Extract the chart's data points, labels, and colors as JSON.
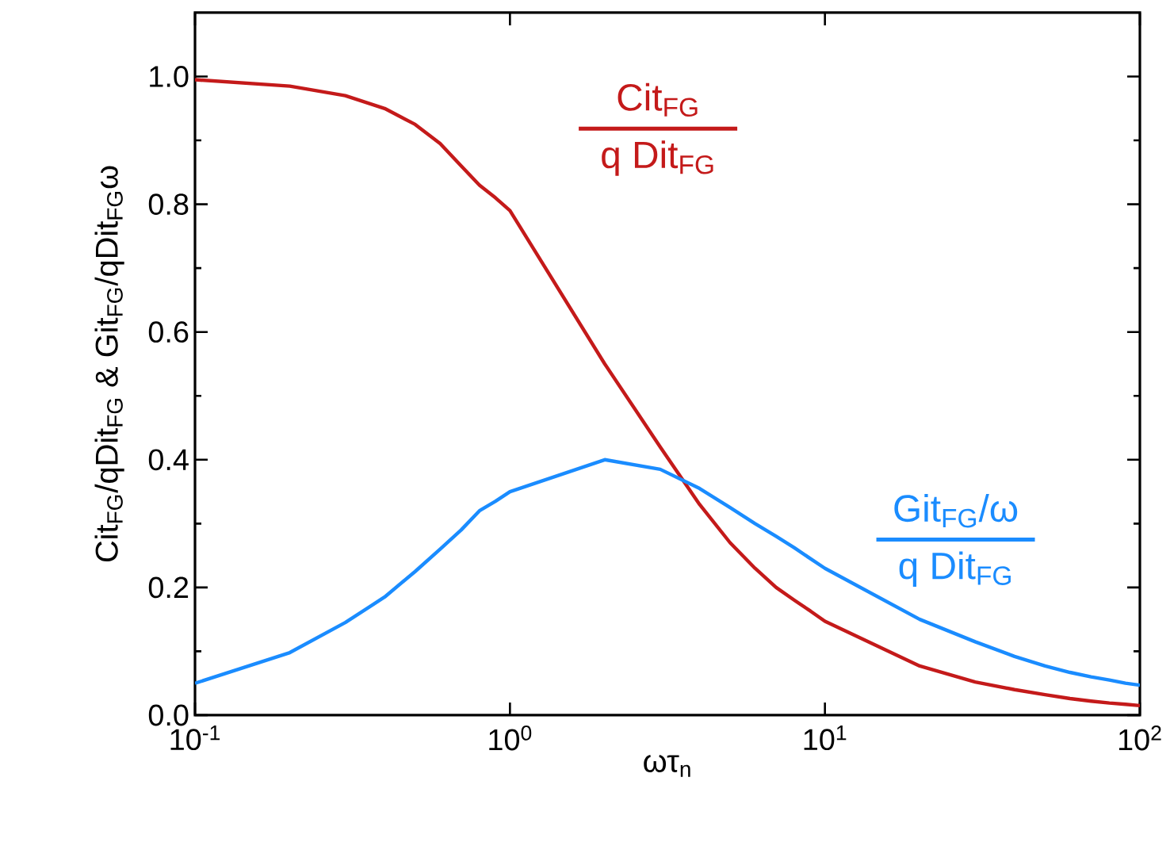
{
  "chart_data": {
    "type": "line",
    "xlabel": "ωτ$_{n}$",
    "ylabel": "Cit$_{FG}$/qDit$_{FG}$  &  Git$_{FG}$/qDit$_{FG}$ω",
    "log": "x",
    "xlim": [
      0.1,
      100
    ],
    "ylim": [
      0,
      1.1
    ],
    "xticks": [
      {
        "value": 0.1,
        "label": "10$^{-1}$"
      },
      {
        "value": 1,
        "label": "10$^{0}$"
      },
      {
        "value": 10,
        "label": "10$^{1}$"
      },
      {
        "value": 100,
        "label": "10$^{2}$"
      }
    ],
    "yticks": [
      {
        "value": 0,
        "label": "0.0"
      },
      {
        "value": 0.2,
        "label": "0.2"
      },
      {
        "value": 0.4,
        "label": "0.4"
      },
      {
        "value": 0.6,
        "label": "0.6"
      },
      {
        "value": 0.8,
        "label": "0.8"
      },
      {
        "value": 1.0,
        "label": "1.0"
      }
    ],
    "x": [
      0.1,
      0.2,
      0.3,
      0.4,
      0.5,
      0.6,
      0.7,
      0.8,
      0.9,
      1,
      2,
      3,
      4,
      5,
      6,
      7,
      8,
      9,
      10,
      20,
      30,
      40,
      50,
      60,
      70,
      80,
      90,
      100
    ],
    "series": [
      {
        "color": "#c41a1a",
        "values": [
          0.995,
          0.985,
          0.97,
          0.95,
          0.925,
          0.895,
          0.86,
          0.83,
          0.81,
          0.79,
          0.55,
          0.42,
          0.33,
          0.27,
          0.23,
          0.2,
          0.18,
          0.163,
          0.147,
          0.077,
          0.052,
          0.04,
          0.032,
          0.026,
          0.022,
          0.019,
          0.017,
          0.015
        ]
      },
      {
        "color": "#1a8cff",
        "values": [
          0.05,
          0.098,
          0.145,
          0.185,
          0.225,
          0.26,
          0.29,
          0.32,
          0.335,
          0.35,
          0.4,
          0.385,
          0.355,
          0.325,
          0.3,
          0.28,
          0.262,
          0.245,
          0.23,
          0.15,
          0.115,
          0.092,
          0.077,
          0.067,
          0.06,
          0.055,
          0.05,
          0.047
        ]
      }
    ],
    "line_style": "solid",
    "marker": "none",
    "annotations": [
      "Cit$_{FG}$",
      "q Dit$_{FG}$",
      "Git$_{FG}$/ω",
      "q Dit$_{FG}$"
    ]
  }
}
